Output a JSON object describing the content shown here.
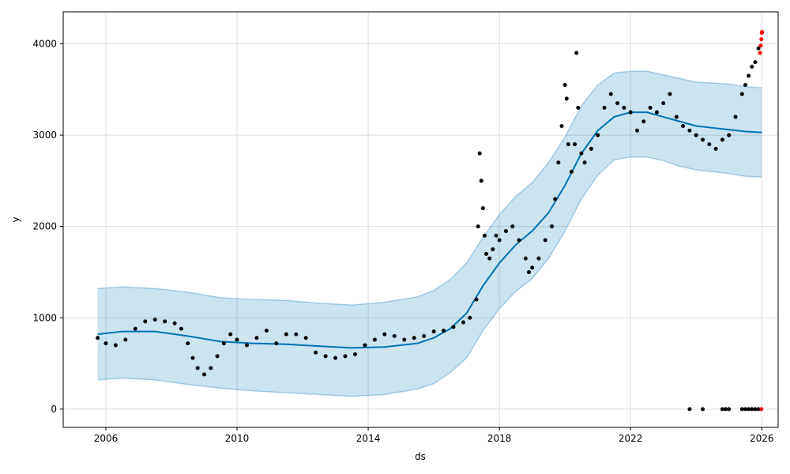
{
  "chart_data": {
    "type": "line",
    "title": "",
    "xlabel": "ds",
    "ylabel": "y",
    "xlim": [
      2004.7,
      2026.5
    ],
    "ylim": [
      -200,
      4350
    ],
    "x_ticks": [
      2006,
      2010,
      2014,
      2018,
      2022,
      2026
    ],
    "y_ticks": [
      0,
      1000,
      2000,
      3000,
      4000
    ],
    "grid": true,
    "colors": {
      "forecast_line": "#0072b2",
      "uncertainty_band": "#0072b2",
      "observed": "#000000",
      "recent_observed": "#ff0000",
      "grid": "#dddddd"
    },
    "series": [
      {
        "name": "yhat",
        "kind": "line",
        "x": [
          2005.75,
          2006.5,
          2007.5,
          2008.5,
          2009.5,
          2010.5,
          2011.5,
          2012.5,
          2013.5,
          2014.5,
          2015.5,
          2016.0,
          2016.5,
          2017.0,
          2017.5,
          2018.0,
          2018.5,
          2019.0,
          2019.5,
          2020.0,
          2020.5,
          2021.0,
          2021.5,
          2022.0,
          2022.5,
          2023.0,
          2023.5,
          2024.0,
          2024.5,
          2025.0,
          2025.5,
          2026.0
        ],
        "values": [
          820,
          850,
          850,
          800,
          740,
          720,
          710,
          690,
          670,
          680,
          720,
          780,
          880,
          1050,
          1350,
          1600,
          1800,
          1950,
          2150,
          2450,
          2800,
          3050,
          3200,
          3250,
          3250,
          3200,
          3150,
          3100,
          3080,
          3060,
          3040,
          3030
        ]
      },
      {
        "name": "yhat_upper",
        "kind": "band",
        "x": [
          2005.75,
          2006.5,
          2007.5,
          2008.5,
          2009.5,
          2010.5,
          2011.5,
          2012.5,
          2013.5,
          2014.5,
          2015.5,
          2016.0,
          2016.5,
          2017.0,
          2017.5,
          2018.0,
          2018.5,
          2019.0,
          2019.5,
          2020.0,
          2020.5,
          2021.0,
          2021.5,
          2022.0,
          2022.5,
          2023.0,
          2023.5,
          2024.0,
          2024.5,
          2025.0,
          2025.5,
          2026.0
        ],
        "values": [
          1320,
          1340,
          1320,
          1280,
          1220,
          1200,
          1190,
          1160,
          1140,
          1170,
          1230,
          1300,
          1420,
          1600,
          1880,
          2130,
          2330,
          2480,
          2700,
          2980,
          3320,
          3550,
          3680,
          3700,
          3700,
          3660,
          3620,
          3580,
          3570,
          3560,
          3530,
          3520
        ]
      },
      {
        "name": "yhat_lower",
        "kind": "band",
        "x": [
          2005.75,
          2006.5,
          2007.5,
          2008.5,
          2009.5,
          2010.5,
          2011.5,
          2012.5,
          2013.5,
          2014.5,
          2015.5,
          2016.0,
          2016.5,
          2017.0,
          2017.5,
          2018.0,
          2018.5,
          2019.0,
          2019.5,
          2020.0,
          2020.5,
          2021.0,
          2021.5,
          2022.0,
          2022.5,
          2023.0,
          2023.5,
          2024.0,
          2024.5,
          2025.0,
          2025.5,
          2026.0
        ],
        "values": [
          320,
          340,
          320,
          270,
          230,
          200,
          180,
          160,
          140,
          160,
          220,
          280,
          400,
          560,
          860,
          1100,
          1290,
          1430,
          1650,
          1950,
          2300,
          2560,
          2730,
          2760,
          2760,
          2720,
          2660,
          2620,
          2600,
          2580,
          2550,
          2540
        ]
      },
      {
        "name": "observed",
        "kind": "scatter",
        "x": [
          2005.75,
          2006.0,
          2006.3,
          2006.6,
          2006.9,
          2007.2,
          2007.5,
          2007.8,
          2008.1,
          2008.3,
          2008.5,
          2008.65,
          2008.8,
          2009.0,
          2009.2,
          2009.4,
          2009.6,
          2009.8,
          2010.0,
          2010.3,
          2010.6,
          2010.9,
          2011.2,
          2011.5,
          2011.8,
          2012.1,
          2012.4,
          2012.7,
          2013.0,
          2013.3,
          2013.6,
          2013.9,
          2014.2,
          2014.5,
          2014.8,
          2015.1,
          2015.4,
          2015.7,
          2016.0,
          2016.3,
          2016.6,
          2016.9,
          2017.1,
          2017.3,
          2017.35,
          2017.4,
          2017.45,
          2017.5,
          2017.55,
          2017.6,
          2017.7,
          2017.8,
          2017.9,
          2018.0,
          2018.2,
          2018.4,
          2018.6,
          2018.8,
          2018.9,
          2019.0,
          2019.2,
          2019.4,
          2019.6,
          2019.7,
          2019.8,
          2019.9,
          2020.0,
          2020.05,
          2020.1,
          2020.2,
          2020.3,
          2020.35,
          2020.4,
          2020.5,
          2020.6,
          2020.8,
          2021.0,
          2021.2,
          2021.4,
          2021.6,
          2021.8,
          2022.0,
          2022.2,
          2022.4,
          2022.6,
          2022.8,
          2023.0,
          2023.2,
          2023.4,
          2023.6,
          2023.8,
          2024.0,
          2024.2,
          2024.4,
          2024.6,
          2024.8,
          2025.0,
          2025.2,
          2025.4,
          2025.5,
          2025.6,
          2025.7,
          2025.8,
          2025.9,
          2023.8,
          2024.2,
          2024.8,
          2024.9,
          2025.0,
          2025.4,
          2025.5,
          2025.6,
          2025.7,
          2025.8,
          2025.9
        ],
        "values": [
          780,
          720,
          700,
          760,
          880,
          960,
          980,
          960,
          940,
          880,
          720,
          560,
          450,
          380,
          450,
          580,
          720,
          820,
          760,
          700,
          780,
          860,
          720,
          820,
          820,
          780,
          620,
          580,
          560,
          580,
          600,
          700,
          760,
          820,
          800,
          760,
          780,
          800,
          850,
          860,
          900,
          950,
          1000,
          1200,
          2000,
          2800,
          2500,
          2200,
          1900,
          1700,
          1650,
          1750,
          1900,
          1850,
          1950,
          2000,
          1850,
          1650,
          1500,
          1550,
          1650,
          1850,
          2000,
          2300,
          2700,
          3100,
          3550,
          3400,
          2900,
          2600,
          2900,
          3900,
          3300,
          2800,
          2700,
          2850,
          3000,
          3300,
          3450,
          3350,
          3300,
          3250,
          3050,
          3150,
          3300,
          3250,
          3350,
          3450,
          3200,
          3100,
          3050,
          3000,
          2950,
          2900,
          2850,
          2950,
          3000,
          3200,
          3450,
          3550,
          3650,
          3750,
          3800,
          3950,
          0,
          0,
          0,
          0,
          0,
          0,
          0,
          0,
          0,
          0,
          0
        ]
      },
      {
        "name": "recent_observed",
        "kind": "scatter",
        "x": [
          2025.95,
          2025.97,
          2025.99,
          2026.0,
          2026.01,
          2025.99
        ],
        "values": [
          3900,
          3980,
          4050,
          4120,
          4130,
          0
        ]
      }
    ]
  }
}
